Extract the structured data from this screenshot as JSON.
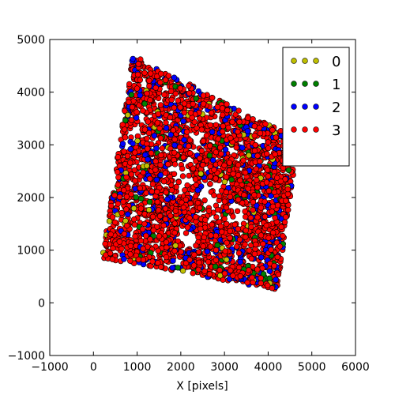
{
  "chart_data": {
    "type": "scatter",
    "title": "",
    "xlabel": "X [pixels]",
    "ylabel": "",
    "xlim": [
      -1000,
      6000
    ],
    "ylim": [
      -1000,
      5000
    ],
    "xticks": [
      "−1000",
      "0",
      "1000",
      "2000",
      "3000",
      "4000",
      "5000",
      "6000"
    ],
    "yticks": [
      "−1000",
      "0",
      "1000",
      "2000",
      "3000",
      "4000",
      "5000"
    ],
    "xtick_values": [
      -1000,
      0,
      1000,
      2000,
      3000,
      4000,
      5000,
      6000
    ],
    "ytick_values": [
      -1000,
      0,
      1000,
      2000,
      3000,
      4000,
      5000
    ],
    "grid": false,
    "legend_position": "top-right",
    "region": {
      "description": "points fill a rotated quadrilateral footprint",
      "corners": [
        [
          200,
          850
        ],
        [
          900,
          4700
        ],
        [
          4700,
          3100
        ],
        [
          4200,
          250
        ]
      ]
    },
    "series": [
      {
        "name": "0",
        "color": "#bfbf00",
        "approx_count": 60
      },
      {
        "name": "1",
        "color": "#007f00",
        "approx_count": 90
      },
      {
        "name": "2",
        "color": "#0000ff",
        "approx_count": 320
      },
      {
        "name": "3",
        "color": "#ff0000",
        "approx_count": 2600
      }
    ]
  }
}
